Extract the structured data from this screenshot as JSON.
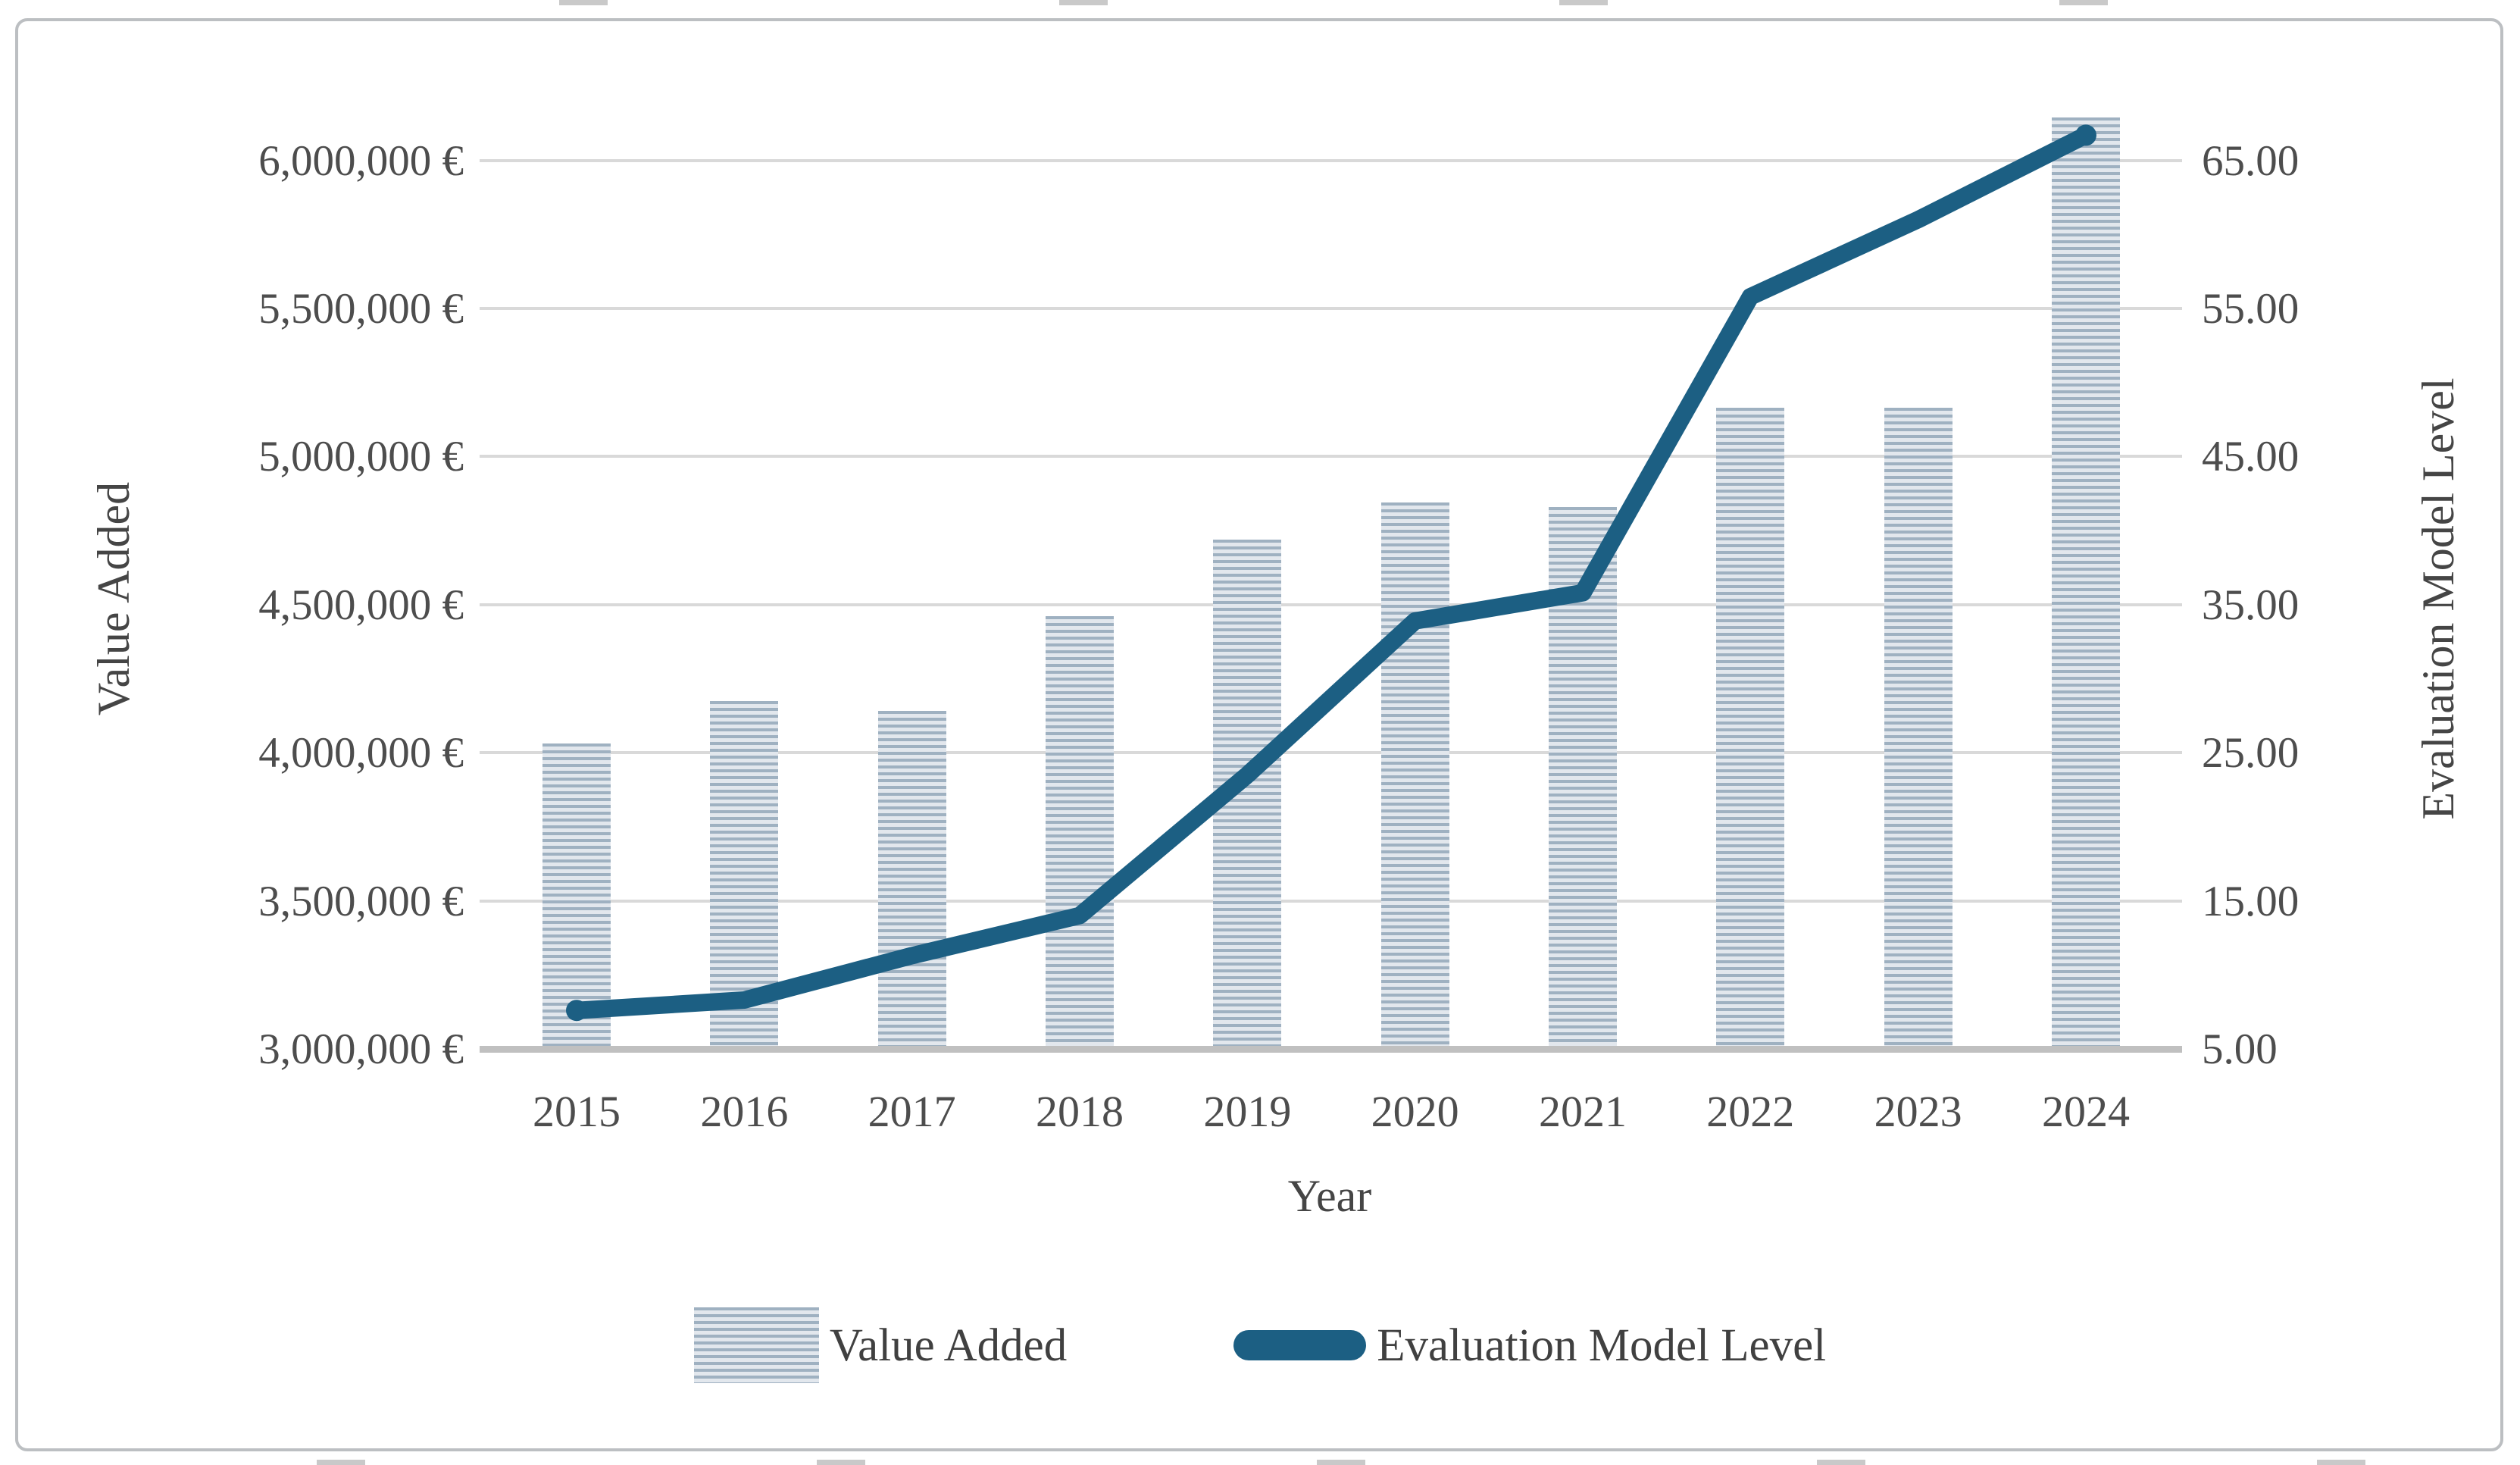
{
  "figure": {
    "kind": "embedded-excel-combo-chart",
    "background": "#ffffff",
    "border_color": "#bcbfc2"
  },
  "chart_data": {
    "type": "bar-line-combo",
    "categories": [
      "2015",
      "2016",
      "2017",
      "2018",
      "2019",
      "2020",
      "2021",
      "2022",
      "2023",
      "2024"
    ],
    "series": [
      {
        "name": "Value Added",
        "type": "bar",
        "axis": "left",
        "values": [
          4030000,
          4175000,
          4140000,
          4460000,
          4720000,
          4845000,
          4830000,
          5165000,
          5165000,
          6145000
        ]
      },
      {
        "name": "Evaluation Model Level",
        "type": "line",
        "axis": "right",
        "values": [
          7.6,
          8.3,
          11.3,
          14.0,
          23.5,
          33.9,
          35.8,
          55.8,
          61.0,
          66.7
        ]
      }
    ],
    "left_axis": {
      "title": "Value Added",
      "tick_labels": [
        "3,000,000 €",
        "3,500,000 €",
        "4,000,000 €",
        "4,500,000 €",
        "5,000,000 €",
        "5,500,000 €",
        "6,000,000 €"
      ],
      "tick_values": [
        3000000,
        3500000,
        4000000,
        4500000,
        5000000,
        5500000,
        6000000
      ],
      "min": 3000000,
      "max": 6500000
    },
    "right_axis": {
      "title": "Evaluation Model Level",
      "tick_labels": [
        "5.00",
        "15.00",
        "25.00",
        "35.00",
        "45.00",
        "55.00",
        "65.00"
      ],
      "tick_values": [
        5,
        15,
        25,
        35,
        45,
        55,
        65
      ],
      "min": 5,
      "max": 75
    },
    "x_axis": {
      "title": "Year"
    },
    "legend": {
      "position": "bottom",
      "entries": [
        {
          "label": "Value Added",
          "swatch": "striped-bar"
        },
        {
          "label": "Evaluation Model Level",
          "swatch": "line"
        }
      ]
    },
    "grid": "horizontal-major",
    "colors": {
      "bar_stripe": "#9fb1c1",
      "bar_stripe_light": "#e2e7ed",
      "line": "#1c5f83",
      "gridline": "#d9d9d9",
      "axis_line": "#c0c0c0",
      "tick_text": "#4d4d4d"
    }
  },
  "edge_marks": {
    "top_centers": [
      770,
      1430,
      2090,
      2750
    ],
    "bottom_centers": [
      450,
      1110,
      1770,
      2430,
      3090
    ]
  }
}
